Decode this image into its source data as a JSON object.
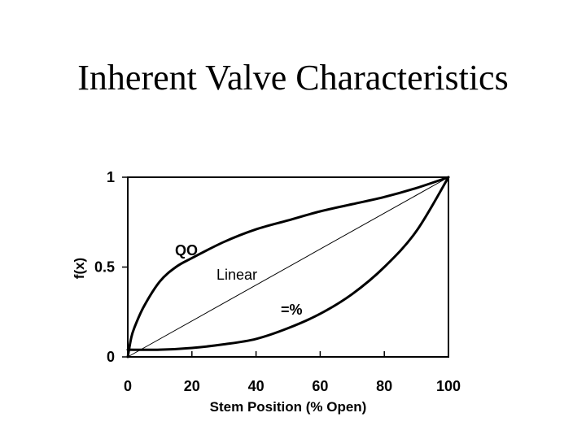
{
  "title": "Inherent Valve Characteristics",
  "chart_data": {
    "type": "line",
    "xlabel": "Stem Position (% Open)",
    "ylabel": "f(x)",
    "xlim": [
      0,
      100
    ],
    "ylim": [
      0,
      1
    ],
    "x_ticks": [
      "0",
      "20",
      "40",
      "60",
      "80",
      "100"
    ],
    "y_ticks": [
      "0",
      "0.5",
      "1"
    ],
    "grid": false,
    "series": [
      {
        "name": "QO",
        "x": [
          0,
          1,
          2,
          5,
          10,
          15,
          20,
          30,
          40,
          50,
          60,
          70,
          80,
          90,
          100
        ],
        "values": [
          0.0,
          0.1,
          0.16,
          0.28,
          0.42,
          0.5,
          0.55,
          0.64,
          0.71,
          0.76,
          0.81,
          0.85,
          0.89,
          0.94,
          1.0
        ]
      },
      {
        "name": "Linear",
        "x": [
          0,
          100
        ],
        "values": [
          0.0,
          1.0
        ]
      },
      {
        "name": "=%",
        "x": [
          0,
          10,
          20,
          30,
          40,
          50,
          60,
          70,
          80,
          90,
          100
        ],
        "values": [
          0.04,
          0.04,
          0.05,
          0.07,
          0.1,
          0.16,
          0.24,
          0.35,
          0.5,
          0.7,
          1.0
        ]
      }
    ]
  }
}
